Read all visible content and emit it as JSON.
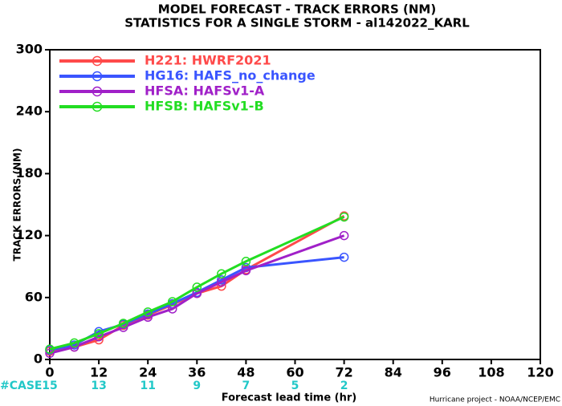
{
  "chart_data": {
    "type": "line",
    "title": "MODEL FORECAST - TRACK ERRORS (NM)",
    "subtitle": "STATISTICS FOR A SINGLE STORM - al142022_KARL",
    "y_label": "TRACK ERRORS (NM)",
    "x_label": "Forecast lead time (hr)",
    "footer": "Hurricane project - NOAA/NCEP/EMC",
    "xlim": [
      0,
      120
    ],
    "xticks": [
      0,
      12,
      24,
      36,
      48,
      60,
      72,
      84,
      96,
      108,
      120
    ],
    "ylim": [
      0,
      300
    ],
    "yticks": [
      0,
      60,
      120,
      180,
      240,
      300
    ],
    "x": [
      0,
      6,
      12,
      18,
      24,
      30,
      36,
      42,
      48,
      72
    ],
    "series": [
      {
        "name": "H221: HWRF2021",
        "color": "#ff4a4a",
        "values": [
          8,
          12,
          19,
          33,
          43,
          53,
          64,
          71,
          87,
          139
        ]
      },
      {
        "name": "HG16: HAFS_no_change",
        "color": "#3a55ff",
        "values": [
          9,
          14,
          27,
          34,
          44,
          54,
          65,
          77,
          89,
          99
        ]
      },
      {
        "name": "HFSA: HAFSv1-A",
        "color": "#a020c8",
        "values": [
          6,
          12,
          22,
          31,
          41,
          49,
          64,
          75,
          86,
          120
        ]
      },
      {
        "name": "HFSB: HAFSv1-B",
        "color": "#22dd22",
        "values": [
          10,
          16,
          25,
          35,
          46,
          56,
          70,
          83,
          95,
          138
        ]
      }
    ],
    "cases": {
      "label": "#CASE",
      "color": "#22c8c8",
      "x": [
        0,
        12,
        24,
        36,
        48,
        60,
        72
      ],
      "values": [
        15,
        13,
        11,
        9,
        7,
        5,
        2
      ]
    }
  }
}
